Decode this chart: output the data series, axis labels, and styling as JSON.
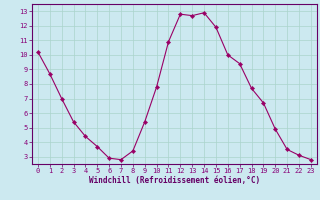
{
  "x": [
    0,
    1,
    2,
    3,
    4,
    5,
    6,
    7,
    8,
    9,
    10,
    11,
    12,
    13,
    14,
    15,
    16,
    17,
    18,
    19,
    20,
    21,
    22,
    23
  ],
  "y": [
    10.2,
    8.7,
    7.0,
    5.4,
    4.4,
    3.7,
    2.9,
    2.8,
    3.4,
    5.4,
    7.8,
    10.9,
    12.8,
    12.7,
    12.9,
    11.9,
    10.0,
    9.4,
    7.7,
    6.7,
    4.9,
    3.5,
    3.1,
    2.8
  ],
  "line_color": "#990066",
  "marker": "D",
  "marker_size": 2.2,
  "bg_color": "#cce9f0",
  "grid_color": "#aad4cc",
  "xlabel": "Windchill (Refroidissement éolien,°C)",
  "xlim": [
    -0.5,
    23.5
  ],
  "ylim": [
    2.5,
    13.5
  ],
  "yticks": [
    3,
    4,
    5,
    6,
    7,
    8,
    9,
    10,
    11,
    12,
    13
  ],
  "xticks": [
    0,
    1,
    2,
    3,
    4,
    5,
    6,
    7,
    8,
    9,
    10,
    11,
    12,
    13,
    14,
    15,
    16,
    17,
    18,
    19,
    20,
    21,
    22,
    23
  ],
  "tick_color": "#880077",
  "label_color": "#660066",
  "spine_color": "#660066",
  "tick_fontsize": 5.0,
  "xlabel_fontsize": 5.5
}
